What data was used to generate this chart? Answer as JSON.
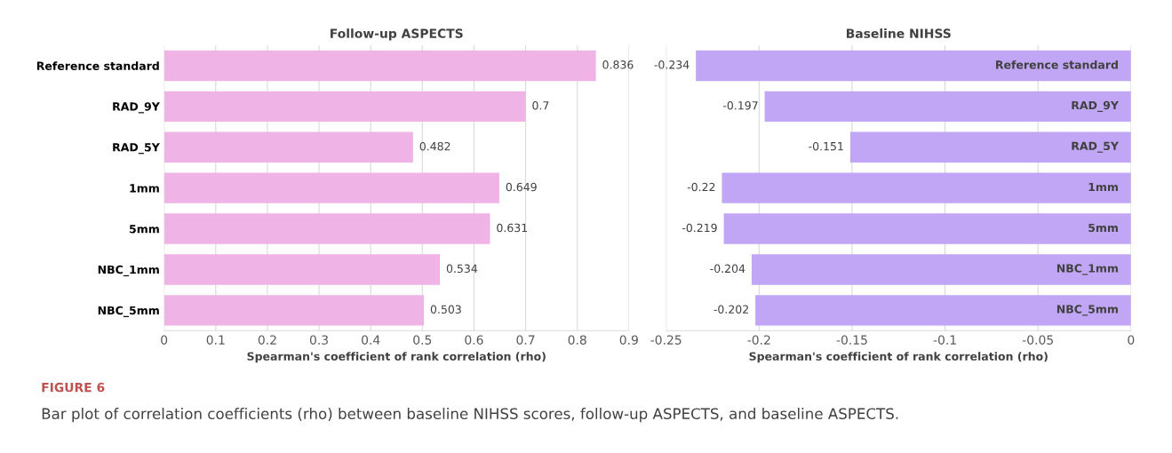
{
  "chart_data": [
    {
      "type": "bar",
      "orientation": "horizontal",
      "title": "Follow-up ASPECTS",
      "xlabel": "Spearman's coefficient of rank correlation (rho)",
      "categories": [
        "Reference standard",
        "RAD_9Y",
        "RAD_5Y",
        "1mm",
        "5mm",
        "NBC_1mm",
        "NBC_5mm"
      ],
      "values": [
        0.836,
        0.7,
        0.482,
        0.649,
        0.631,
        0.534,
        0.503
      ],
      "color": "#efb3e6",
      "xlim": [
        0,
        0.9
      ],
      "xticks": [
        0,
        0.1,
        0.2,
        0.3,
        0.4,
        0.5,
        0.6,
        0.7,
        0.8,
        0.9
      ],
      "grid": "x",
      "data_labels": true,
      "annotations": [
        "FIGURE 6",
        "Bar plot of correlation coefficients (rho) between baseline NIHSS scores, follow-up ASPECTS, and baseline ASPECTS."
      ]
    },
    {
      "type": "bar",
      "orientation": "horizontal",
      "title": "Baseline NIHSS",
      "xlabel": "Spearman's coefficient of rank correlation (rho)",
      "categories": [
        "Reference standard",
        "RAD_9Y",
        "RAD_5Y",
        "1mm",
        "5mm",
        "NBC_1mm",
        "NBC_5mm"
      ],
      "values": [
        -0.234,
        -0.197,
        -0.151,
        -0.22,
        -0.219,
        -0.204,
        -0.202
      ],
      "color": "#c0a6f5",
      "xlim": [
        -0.25,
        0
      ],
      "xticks": [
        -0.25,
        -0.2,
        -0.15,
        -0.1,
        -0.05,
        0
      ],
      "grid": "x",
      "data_labels": true
    }
  ]
}
